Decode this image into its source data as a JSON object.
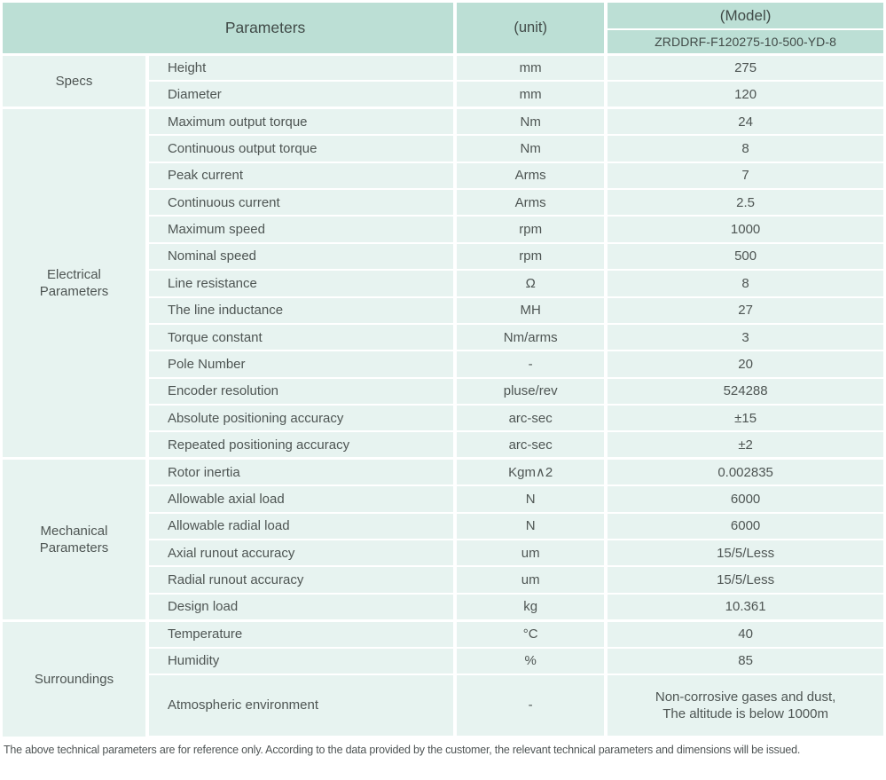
{
  "colors": {
    "header_bg": "#bcdfd5",
    "row_bg": "#e7f3f0",
    "divider": "#ffffff",
    "text": "#4e5553",
    "header_text": "#414b48",
    "footer_text": "#4f5555"
  },
  "header": {
    "parameters_label": "Parameters",
    "unit_label": "(unit)",
    "model_label": "(Model)",
    "model_value": "ZRDDRF-F120275-10-500-YD-8"
  },
  "sections": [
    {
      "label": "Specs",
      "rows": [
        {
          "name": "Height",
          "unit": "mm",
          "value": "275"
        },
        {
          "name": "Diameter",
          "unit": "mm",
          "value": "120"
        }
      ]
    },
    {
      "label": "Electrical Parameters",
      "rows": [
        {
          "name": "Maximum output torque",
          "unit": "Nm",
          "value": "24"
        },
        {
          "name": "Continuous output torque",
          "unit": "Nm",
          "value": "8"
        },
        {
          "name": "Peak current",
          "unit": "Arms",
          "value": "7"
        },
        {
          "name": "Continuous current",
          "unit": "Arms",
          "value": "2.5"
        },
        {
          "name": "Maximum speed",
          "unit": "rpm",
          "value": "1000"
        },
        {
          "name": "Nominal speed",
          "unit": "rpm",
          "value": "500"
        },
        {
          "name": "Line resistance",
          "unit": "Ω",
          "value": "8"
        },
        {
          "name": "The line inductance",
          "unit": "MH",
          "value": "27"
        },
        {
          "name": "Torque constant",
          "unit": "Nm/arms",
          "value": "3"
        },
        {
          "name": "Pole Number",
          "unit": "-",
          "value": "20"
        },
        {
          "name": "Encoder resolution",
          "unit": "pluse/rev",
          "value": "524288"
        },
        {
          "name": "Absolute positioning accuracy",
          "unit": "arc-sec",
          "value": "±15"
        },
        {
          "name": "Repeated positioning accuracy",
          "unit": "arc-sec",
          "value": "±2"
        }
      ]
    },
    {
      "label": "Mechanical Parameters",
      "rows": [
        {
          "name": "Rotor inertia",
          "unit": "Kgm∧2",
          "value": "0.002835"
        },
        {
          "name": "Allowable axial load",
          "unit": "N",
          "value": "6000"
        },
        {
          "name": "Allowable radial load",
          "unit": "N",
          "value": "6000"
        },
        {
          "name": "Axial runout accuracy",
          "unit": "um",
          "value": "15/5/Less"
        },
        {
          "name": "Radial runout accuracy",
          "unit": "um",
          "value": "15/5/Less"
        },
        {
          "name": "Design load",
          "unit": "kg",
          "value": "10.361"
        }
      ]
    },
    {
      "label": "Surroundings",
      "rows": [
        {
          "name": "Temperature",
          "unit": "°C",
          "value": "40"
        },
        {
          "name": "Humidity",
          "unit": "%",
          "value": "85"
        },
        {
          "name": "Atmospheric environment",
          "unit": "-",
          "value": "Non-corrosive gases and dust,\nThe altitude is below 1000m",
          "tall": true
        }
      ]
    }
  ],
  "footer": {
    "note": "The above technical parameters are for reference only. According to the data provided by the customer, the relevant technical parameters and dimensions will be issued."
  }
}
